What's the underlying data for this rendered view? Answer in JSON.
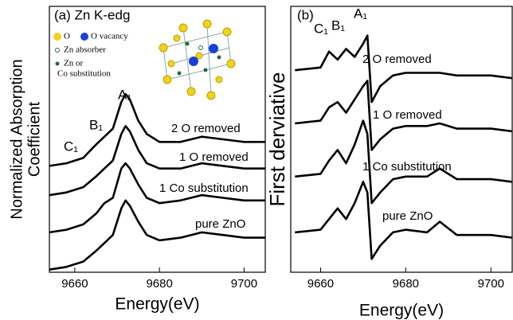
{
  "chart_data": [
    {
      "type": "line",
      "title": "(a) Zn K-edg",
      "ylabel": [
        "Normalized Absorption",
        "Coefficient"
      ],
      "xlabel": "Energy(eV)",
      "x": [
        9654,
        9658,
        9662,
        9665,
        9667,
        9669,
        9671,
        9672,
        9673,
        9675,
        9677,
        9680,
        9685,
        9690,
        9695,
        9700,
        9705
      ],
      "series": [
        {
          "name": "pure ZnO",
          "color": "#000000",
          "values": [
            0.1,
            0.2,
            0.4,
            0.8,
            1.1,
            1.4,
            2.4,
            2.7,
            2.5,
            1.9,
            1.4,
            1.2,
            1.3,
            1.5,
            1.4,
            1.3,
            1.3
          ]
        },
        {
          "name": "1 Co substitution",
          "color": "#000000",
          "values": [
            1.5,
            1.6,
            1.8,
            2.2,
            2.6,
            2.8,
            3.9,
            4.1,
            3.9,
            3.3,
            2.8,
            2.6,
            2.7,
            2.9,
            2.8,
            2.7,
            2.7
          ]
        },
        {
          "name": "1 O removed",
          "color": "#000000",
          "values": [
            2.9,
            3.0,
            3.2,
            3.6,
            3.9,
            4.2,
            5.2,
            5.5,
            5.3,
            4.6,
            4.1,
            3.9,
            3.9,
            4.1,
            4.0,
            3.9,
            3.9
          ]
        },
        {
          "name": "2 O removed",
          "color": "#000000",
          "values": [
            4.0,
            4.1,
            4.3,
            4.8,
            5.1,
            5.4,
            6.4,
            6.7,
            6.5,
            5.7,
            5.2,
            4.9,
            4.9,
            5.1,
            5.0,
            4.9,
            4.9
          ]
        }
      ],
      "peaks": [
        "C₁",
        "B₁",
        "A₁"
      ],
      "inset_legend": [
        "O",
        "O vacancy",
        "Zn absorber",
        "Zn or",
        "Co substitution"
      ],
      "xlim": [
        9654,
        9705
      ],
      "xticks": [
        9660,
        9680,
        9700
      ],
      "ylim": [
        0,
        10
      ]
    },
    {
      "type": "line",
      "title": "(b)",
      "ylabel": [
        "First derviative"
      ],
      "xlabel": "Energy(eV)",
      "x": [
        9654,
        9660,
        9662,
        9664,
        9666,
        9668,
        9670,
        9671,
        9672,
        9674,
        9677,
        9680,
        9685,
        9688,
        9692,
        9700,
        9705
      ],
      "series": [
        {
          "name": "pure ZnO",
          "color": "#000000",
          "values": [
            1.5,
            1.6,
            2.0,
            2.4,
            2.0,
            2.6,
            3.4,
            3.0,
            0.5,
            1.0,
            1.5,
            1.6,
            1.5,
            1.9,
            1.4,
            1.4,
            1.3
          ]
        },
        {
          "name": "1 Co substitution",
          "color": "#000000",
          "values": [
            3.6,
            3.7,
            4.2,
            4.6,
            4.1,
            4.8,
            5.7,
            5.2,
            2.6,
            3.0,
            3.5,
            3.6,
            3.6,
            3.9,
            3.5,
            3.5,
            3.4
          ]
        },
        {
          "name": "1 O removed",
          "color": "#000000",
          "values": [
            5.6,
            5.7,
            6.2,
            6.4,
            6.0,
            6.5,
            7.0,
            7.2,
            4.6,
            5.0,
            5.4,
            5.5,
            5.5,
            5.6,
            5.4,
            5.4,
            5.3
          ]
        },
        {
          "name": "2 O removed",
          "color": "#000000",
          "values": [
            7.6,
            7.7,
            8.3,
            8.0,
            8.4,
            8.1,
            8.6,
            8.9,
            6.4,
            7.0,
            7.4,
            7.5,
            7.5,
            7.5,
            7.4,
            7.4,
            7.3
          ]
        }
      ],
      "peaks": [
        "C₁",
        "B₁",
        "A₁"
      ],
      "xlim": [
        9653,
        9705
      ],
      "xticks": [
        9660,
        9680,
        9700
      ],
      "ylim": [
        0,
        10
      ]
    }
  ]
}
